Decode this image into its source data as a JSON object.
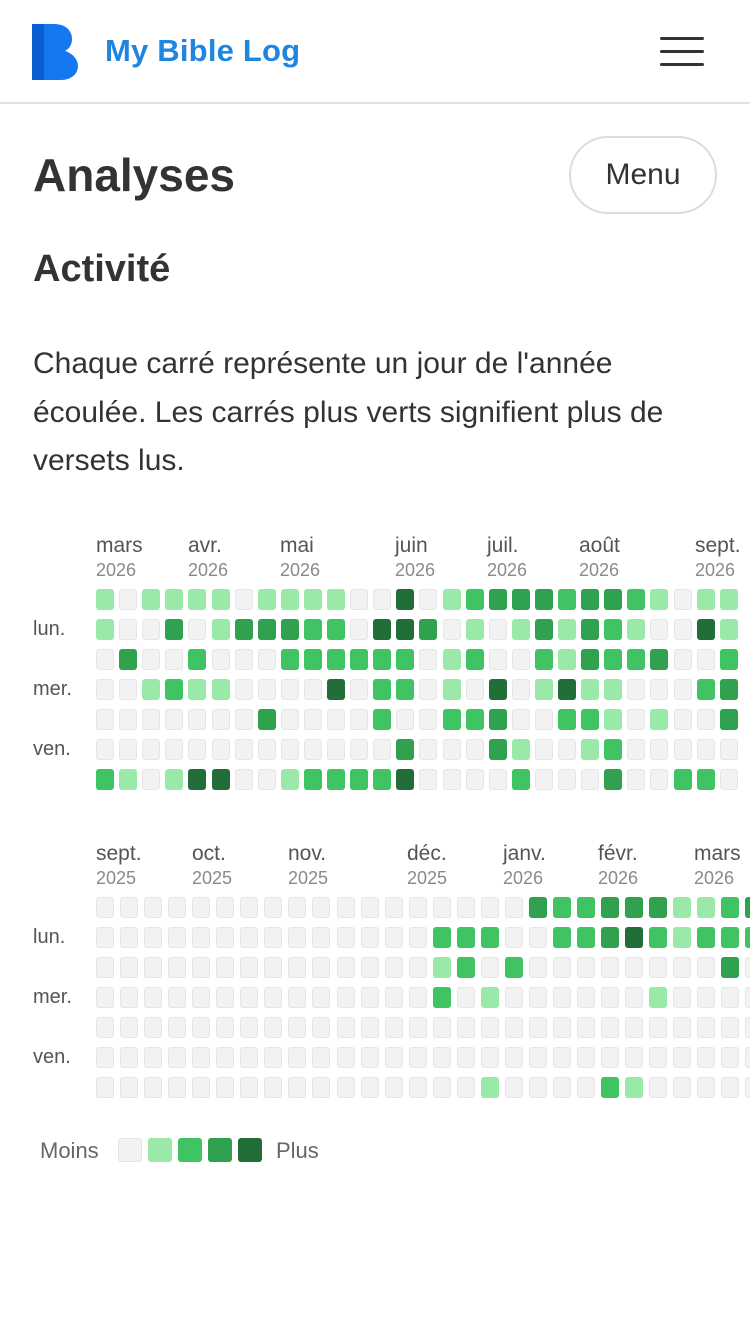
{
  "header": {
    "app_title": "My Bible Log",
    "logo_letter": "B",
    "logo_icon": "bible-log-logo",
    "menu_icon": "hamburger-menu-icon"
  },
  "page": {
    "title": "Analyses",
    "menu_label": "Menu"
  },
  "activity": {
    "title": "Activité",
    "description": "Chaque carré représente un jour de l'année écoulée. Les carrés plus verts signifient plus de versets lus."
  },
  "colors": {
    "level0": "#f2f2f2",
    "level1": "#9be9a8",
    "level2": "#40c463",
    "level3": "#30a14e",
    "level4": "#216e39",
    "accent": "#1f86e0"
  },
  "heatmaps": [
    {
      "months": [
        {
          "name": "mars",
          "year": "2026"
        },
        {
          "name": "avr.",
          "year": "2026"
        },
        {
          "name": "mai",
          "year": "2026"
        },
        {
          "name": "juin",
          "year": "2026"
        },
        {
          "name": "juil.",
          "year": "2026"
        },
        {
          "name": "août",
          "year": "2026"
        },
        {
          "name": "sept.",
          "year": "2026"
        }
      ],
      "day_labels": [
        "lun.",
        "mer.",
        "ven."
      ],
      "rows": [
        "1011110111100401233323321011",
        "1003013332204430101313210041",
        "0300200022222201200213223002",
        "0012110000402201040141100023",
        "0000000300002002230022101003",
        "0000000000000300031001200000",
        "2101440012222400002000300220"
      ]
    },
    {
      "months": [
        {
          "name": "sept.",
          "year": "2025"
        },
        {
          "name": "oct.",
          "year": "2025"
        },
        {
          "name": "nov.",
          "year": "2025"
        },
        {
          "name": "déc.",
          "year": "2025"
        },
        {
          "name": "janv.",
          "year": "2026"
        },
        {
          "name": "févr.",
          "year": "2026"
        },
        {
          "name": "mars",
          "year": "2026"
        }
      ],
      "day_labels": [
        "lun.",
        "mer.",
        "ven."
      ],
      "rows": [
        "00000000000000000032233311232",
        "00000000000000222002234212222",
        "00000000000000120200000000302",
        "00000000000000201000000100000",
        "00000000000000000000000000000",
        "00000000000000000000000000000",
        "00000000000000001000021000003"
      ]
    }
  ],
  "legend": {
    "less": "Moins",
    "more": "Plus",
    "levels": [
      0,
      1,
      2,
      3,
      4
    ]
  }
}
